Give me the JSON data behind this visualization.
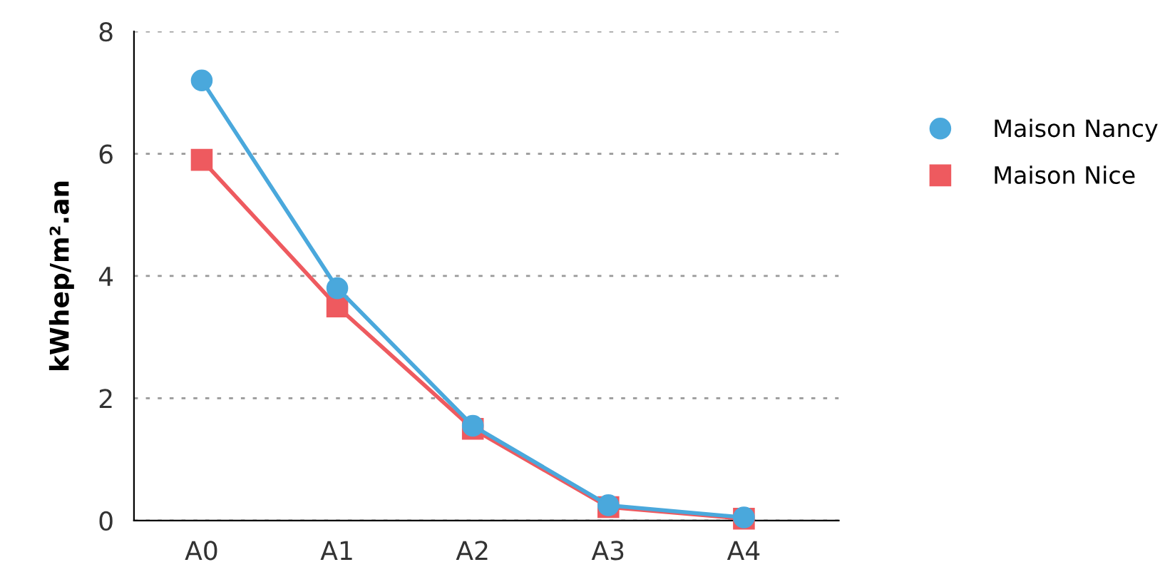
{
  "chart_data": {
    "type": "line",
    "ylabel": "kWhep/m².an",
    "categories": [
      "A0",
      "A1",
      "A2",
      "A3",
      "A4"
    ],
    "series": [
      {
        "name": "Maison Nancy",
        "color": "#4aa8dc",
        "marker": "circle",
        "values": [
          7.2,
          3.8,
          1.55,
          0.25,
          0.05
        ]
      },
      {
        "name": "Maison Nice",
        "color": "#ee5a5f",
        "marker": "square",
        "values": [
          5.9,
          3.5,
          1.5,
          0.22,
          0.03
        ]
      }
    ],
    "ylim": [
      0,
      8
    ],
    "yticks": [
      0,
      2,
      4,
      6,
      8
    ],
    "grid": "y",
    "legend": "right",
    "line_style": "solid"
  }
}
